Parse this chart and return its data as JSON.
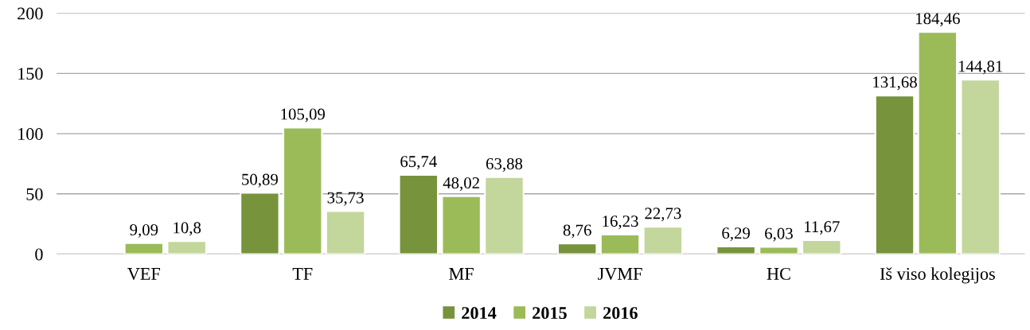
{
  "chart_data": {
    "type": "bar",
    "categories": [
      "VEF",
      "TF",
      "MF",
      "JVMF",
      "HC",
      "Iš viso kolegijos"
    ],
    "series": [
      {
        "name": "2014",
        "color": "#77933c",
        "values": [
          null,
          50.89,
          65.74,
          8.76,
          6.29,
          131.68
        ],
        "value_labels": [
          null,
          "50,89",
          "65,74",
          "8,76",
          "6,29",
          "131,68"
        ]
      },
      {
        "name": "2015",
        "color": "#9bbb59",
        "values": [
          9.09,
          105.09,
          48.02,
          16.23,
          6.03,
          184.46
        ],
        "value_labels": [
          "9,09",
          "105,09",
          "48,02",
          "16,23",
          "6,03",
          "184,46"
        ]
      },
      {
        "name": "2016",
        "color": "#c3d69b",
        "values": [
          10.8,
          35.73,
          63.88,
          22.73,
          11.67,
          144.81
        ],
        "value_labels": [
          "10,8",
          "35,73",
          "63,88",
          "22,73",
          "11,67",
          "144,81"
        ]
      }
    ],
    "ylim": [
      0,
      200
    ],
    "yticks": [
      0,
      50,
      100,
      150,
      200
    ],
    "grid": "y",
    "legend": "bottom"
  }
}
